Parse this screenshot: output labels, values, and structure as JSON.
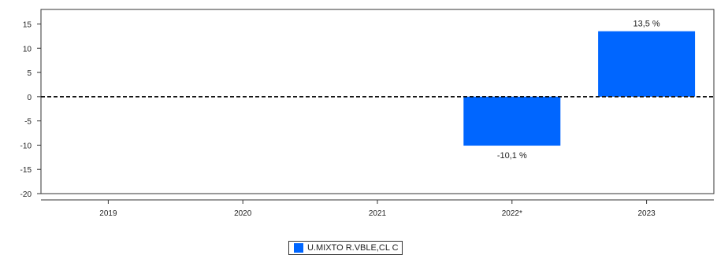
{
  "chart_data": {
    "type": "bar",
    "categories": [
      "2019",
      "2020",
      "2021",
      "2022*",
      "2023"
    ],
    "series": [
      {
        "name": "U.MIXTO R.VBLE,CL C",
        "values": [
          null,
          null,
          null,
          -10.1,
          13.5
        ],
        "labels": [
          null,
          null,
          null,
          "-10,1 %",
          "13,5 %"
        ],
        "color": "#0066ff"
      }
    ],
    "ylim": [
      -20,
      18
    ],
    "yticks": [
      15,
      10,
      5,
      0,
      -5,
      -10,
      -15,
      -20
    ],
    "ytick_labels": [
      "15",
      "10",
      "5",
      "0",
      "-5",
      "-10",
      "-15",
      "-20"
    ],
    "zero_line": "dashed",
    "grid": false,
    "legend_position": "bottom-center"
  }
}
